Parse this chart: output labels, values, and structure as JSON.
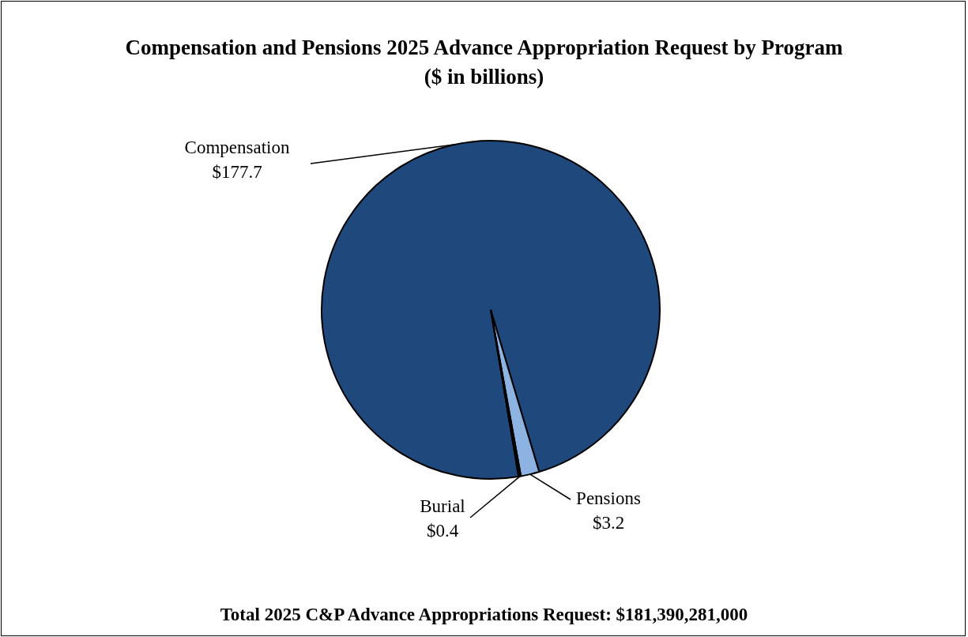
{
  "chart_data": {
    "type": "pie",
    "title": "Compensation and Pensions 2025 Advance Appropriation Request by Program",
    "subtitle": "($ in billions)",
    "categories": [
      "Compensation",
      "Pensions",
      "Burial"
    ],
    "values": [
      177.7,
      3.2,
      0.4
    ],
    "value_labels": [
      "$177.7",
      "$3.2",
      "$0.4"
    ],
    "colors": [
      "#1f497d",
      "#8db3e2",
      "#0d0d0d"
    ],
    "annotations": [
      "Total 2025 C&P Advance Appropriations Request: $181,390,281,000"
    ]
  }
}
